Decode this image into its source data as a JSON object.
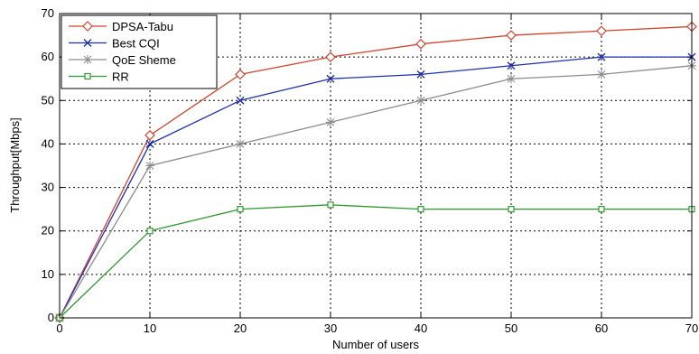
{
  "chart_data": {
    "type": "line",
    "xlabel": "Number of users",
    "ylabel": "Throughput[Mbps]",
    "xlim": [
      0,
      70
    ],
    "ylim": [
      0,
      70
    ],
    "xticks": [
      0,
      10,
      20,
      30,
      40,
      50,
      60,
      70
    ],
    "yticks": [
      0,
      10,
      20,
      30,
      40,
      50,
      60,
      70
    ],
    "grid": true,
    "legend_position": "top-left",
    "x": [
      0,
      10,
      20,
      30,
      40,
      50,
      60,
      70
    ],
    "series": [
      {
        "name": "DPSA-Tabu",
        "values": [
          0,
          42,
          56,
          60,
          63,
          65,
          66,
          67
        ],
        "color": "#d2452e",
        "marker": "diamond"
      },
      {
        "name": "Best CQI",
        "values": [
          0,
          40,
          50,
          55,
          56,
          58,
          60,
          60
        ],
        "color": "#1f2fb0",
        "marker": "x"
      },
      {
        "name": "QoE Sheme",
        "values": [
          0,
          35,
          40,
          45,
          50,
          55,
          56,
          58
        ],
        "color": "#8c8c8c",
        "marker": "star"
      },
      {
        "name": "RR",
        "values": [
          0,
          20,
          25,
          26,
          25,
          25,
          25,
          25
        ],
        "color": "#2e9a2e",
        "marker": "square"
      }
    ]
  }
}
